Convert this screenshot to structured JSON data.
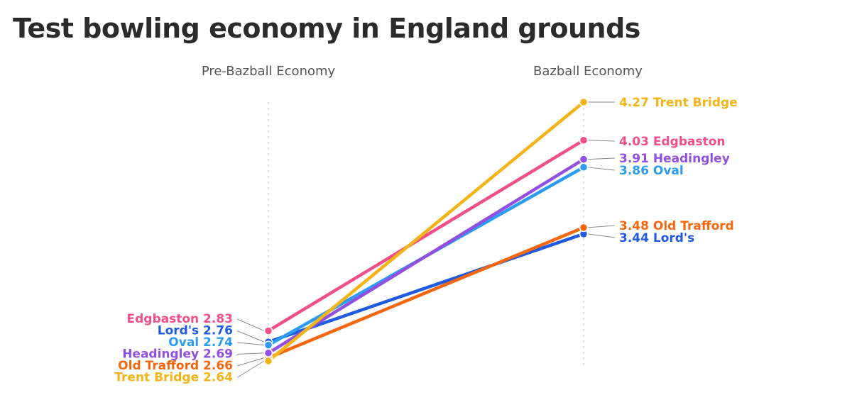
{
  "chart_data": {
    "type": "line",
    "subtype": "slope",
    "title": "Test bowling economy in England grounds",
    "categories": [
      "Pre-Bazball Economy",
      "Bazball Economy"
    ],
    "series": [
      {
        "name": "Trent Bridge",
        "color": "#f2b417",
        "values": [
          2.64,
          4.27
        ]
      },
      {
        "name": "Edgbaston",
        "color": "#ef4f8b",
        "values": [
          2.83,
          4.03
        ]
      },
      {
        "name": "Headingley",
        "color": "#9150e0",
        "values": [
          2.69,
          3.91
        ]
      },
      {
        "name": "Oval",
        "color": "#2b9cf2",
        "values": [
          2.74,
          3.86
        ]
      },
      {
        "name": "Old Trafford",
        "color": "#f5670f",
        "values": [
          2.66,
          3.48
        ]
      },
      {
        "name": "Lord's",
        "color": "#1f5ae0",
        "values": [
          2.76,
          3.44
        ]
      }
    ],
    "left_label_order": [
      "Edgbaston",
      "Lord's",
      "Oval",
      "Headingley",
      "Old Trafford",
      "Trent Bridge"
    ],
    "right_label_order": [
      "Trent Bridge",
      "Edgbaston",
      "Headingley",
      "Oval",
      "Old Trafford",
      "Lord's"
    ],
    "ylim": [
      2.64,
      4.27
    ],
    "grid": false,
    "legend": "none"
  }
}
